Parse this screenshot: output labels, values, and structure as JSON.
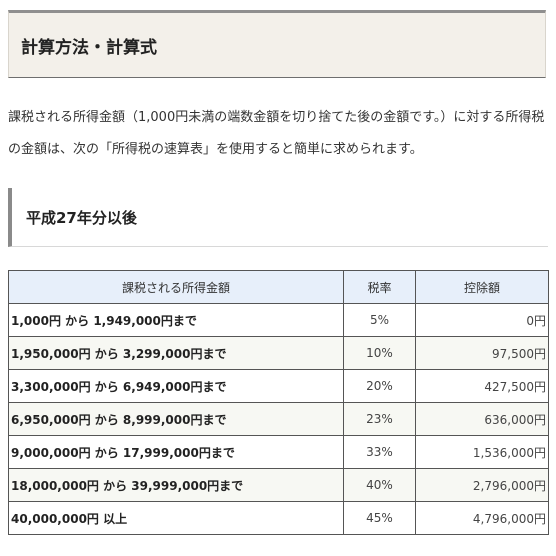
{
  "section_title": "計算方法・計算式",
  "intro_text": "課税される所得金額（1,000円未満の端数金額を切り捨てた後の金額です。）に対する所得税の金額は、次の「所得税の速算表」を使用すると簡単に求められます。",
  "subsection_title": "平成27年分以後",
  "table": {
    "headers": [
      "課税される所得金額",
      "税率",
      "控除額"
    ],
    "rows": [
      {
        "range": "1,000円 から 1,949,000円まで",
        "rate": "5%",
        "deduction": "0円"
      },
      {
        "range": "1,950,000円 から 3,299,000円まで",
        "rate": "10%",
        "deduction": "97,500円"
      },
      {
        "range": "3,300,000円 から 6,949,000円まで",
        "rate": "20%",
        "deduction": "427,500円"
      },
      {
        "range": "6,950,000円 から 8,999,000円まで",
        "rate": "23%",
        "deduction": "636,000円"
      },
      {
        "range": "9,000,000円 から 17,999,000円まで",
        "rate": "33%",
        "deduction": "1,536,000円"
      },
      {
        "range": "18,000,000円 から 39,999,000円まで",
        "rate": "40%",
        "deduction": "2,796,000円"
      },
      {
        "range": "40,000,000円 以上",
        "rate": "45%",
        "deduction": "4,796,000円"
      }
    ]
  }
}
